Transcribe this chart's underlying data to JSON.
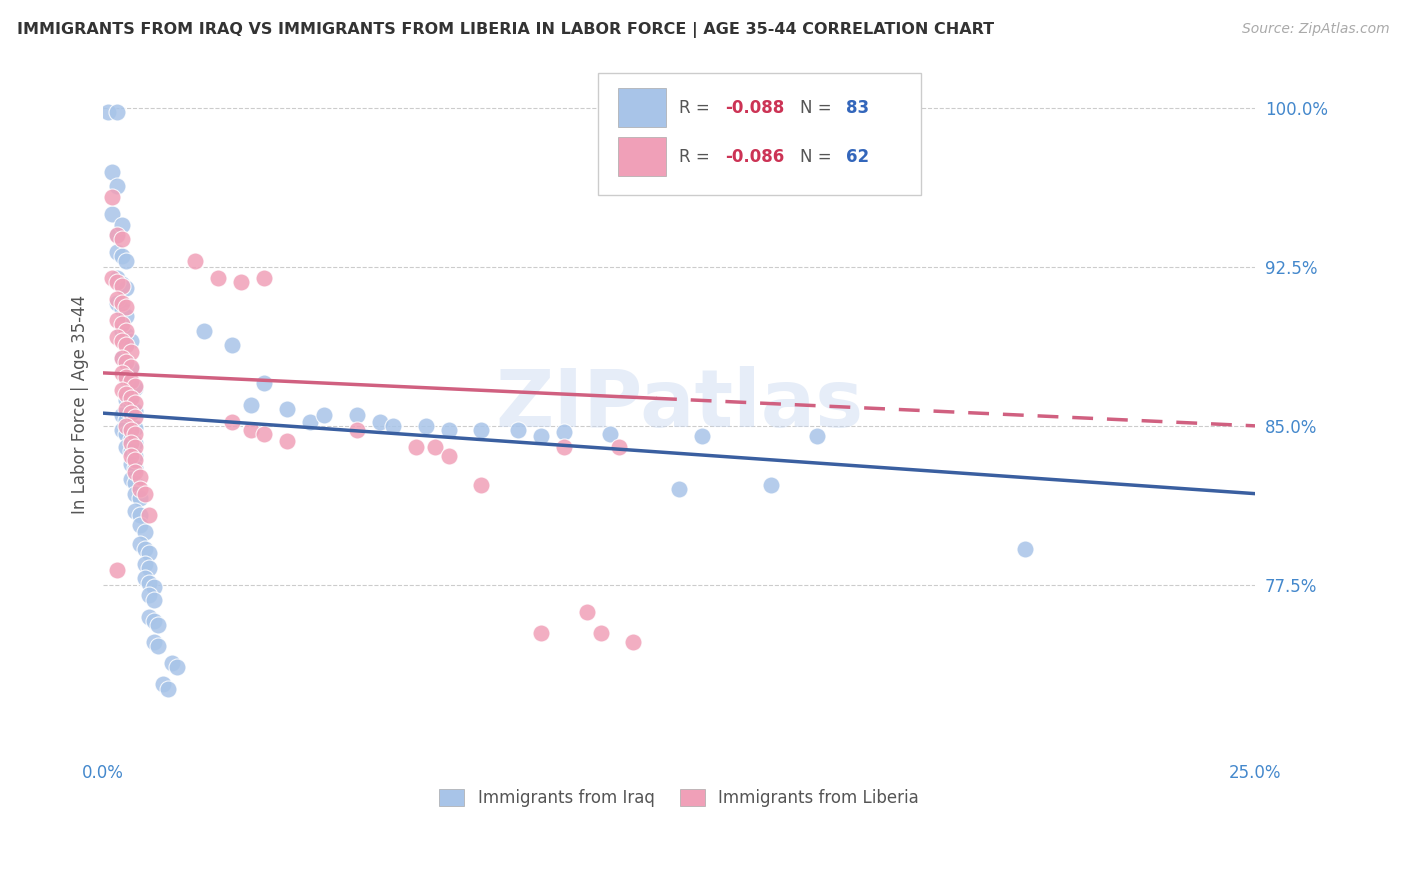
{
  "title": "IMMIGRANTS FROM IRAQ VS IMMIGRANTS FROM LIBERIA IN LABOR FORCE | AGE 35-44 CORRELATION CHART",
  "source": "Source: ZipAtlas.com",
  "ylabel": "In Labor Force | Age 35-44",
  "xlim": [
    0.0,
    0.25
  ],
  "ylim": [
    0.695,
    1.025
  ],
  "yticks": [
    0.775,
    0.85,
    0.925,
    1.0
  ],
  "ytick_labels": [
    "77.5%",
    "85.0%",
    "92.5%",
    "100.0%"
  ],
  "xticks": [
    0.0,
    0.05,
    0.1,
    0.15,
    0.2,
    0.25
  ],
  "xtick_labels": [
    "0.0%",
    "",
    "",
    "",
    "",
    "25.0%"
  ],
  "iraq_color": "#a8c4e8",
  "liberia_color": "#f0a0b8",
  "iraq_line_color": "#3a5fa0",
  "liberia_line_color": "#d06080",
  "iraq_line_x0": 0.0,
  "iraq_line_y0": 0.856,
  "iraq_line_x1": 0.25,
  "iraq_line_y1": 0.818,
  "liberia_line_x0": 0.0,
  "liberia_line_y0": 0.875,
  "liberia_line_x1": 0.25,
  "liberia_line_y1": 0.85,
  "liberia_line_solid_end": 0.12,
  "iraq_scatter": [
    [
      0.001,
      0.998
    ],
    [
      0.003,
      0.998
    ],
    [
      0.002,
      0.97
    ],
    [
      0.003,
      0.963
    ],
    [
      0.002,
      0.95
    ],
    [
      0.003,
      0.94
    ],
    [
      0.004,
      0.945
    ],
    [
      0.003,
      0.932
    ],
    [
      0.004,
      0.93
    ],
    [
      0.005,
      0.928
    ],
    [
      0.003,
      0.92
    ],
    [
      0.004,
      0.917
    ],
    [
      0.005,
      0.915
    ],
    [
      0.003,
      0.908
    ],
    [
      0.004,
      0.905
    ],
    [
      0.005,
      0.902
    ],
    [
      0.004,
      0.895
    ],
    [
      0.005,
      0.893
    ],
    [
      0.006,
      0.89
    ],
    [
      0.004,
      0.882
    ],
    [
      0.005,
      0.88
    ],
    [
      0.006,
      0.877
    ],
    [
      0.005,
      0.872
    ],
    [
      0.006,
      0.87
    ],
    [
      0.007,
      0.868
    ],
    [
      0.005,
      0.862
    ],
    [
      0.006,
      0.86
    ],
    [
      0.007,
      0.857
    ],
    [
      0.004,
      0.855
    ],
    [
      0.005,
      0.853
    ],
    [
      0.006,
      0.851
    ],
    [
      0.007,
      0.849
    ],
    [
      0.004,
      0.848
    ],
    [
      0.005,
      0.846
    ],
    [
      0.006,
      0.844
    ],
    [
      0.007,
      0.842
    ],
    [
      0.005,
      0.84
    ],
    [
      0.006,
      0.838
    ],
    [
      0.007,
      0.836
    ],
    [
      0.006,
      0.832
    ],
    [
      0.007,
      0.83
    ],
    [
      0.006,
      0.825
    ],
    [
      0.007,
      0.823
    ],
    [
      0.007,
      0.818
    ],
    [
      0.008,
      0.816
    ],
    [
      0.007,
      0.81
    ],
    [
      0.008,
      0.808
    ],
    [
      0.008,
      0.803
    ],
    [
      0.009,
      0.8
    ],
    [
      0.008,
      0.794
    ],
    [
      0.009,
      0.792
    ],
    [
      0.01,
      0.79
    ],
    [
      0.009,
      0.785
    ],
    [
      0.01,
      0.783
    ],
    [
      0.009,
      0.778
    ],
    [
      0.01,
      0.776
    ],
    [
      0.011,
      0.774
    ],
    [
      0.01,
      0.77
    ],
    [
      0.011,
      0.768
    ],
    [
      0.01,
      0.76
    ],
    [
      0.011,
      0.758
    ],
    [
      0.012,
      0.756
    ],
    [
      0.011,
      0.748
    ],
    [
      0.012,
      0.746
    ],
    [
      0.015,
      0.738
    ],
    [
      0.016,
      0.736
    ],
    [
      0.013,
      0.728
    ],
    [
      0.014,
      0.726
    ],
    [
      0.022,
      0.895
    ],
    [
      0.028,
      0.888
    ],
    [
      0.032,
      0.86
    ],
    [
      0.035,
      0.87
    ],
    [
      0.04,
      0.858
    ],
    [
      0.045,
      0.852
    ],
    [
      0.048,
      0.855
    ],
    [
      0.055,
      0.855
    ],
    [
      0.06,
      0.852
    ],
    [
      0.063,
      0.85
    ],
    [
      0.07,
      0.85
    ],
    [
      0.075,
      0.848
    ],
    [
      0.082,
      0.848
    ],
    [
      0.09,
      0.848
    ],
    [
      0.095,
      0.845
    ],
    [
      0.1,
      0.847
    ],
    [
      0.11,
      0.846
    ],
    [
      0.13,
      0.845
    ],
    [
      0.155,
      0.845
    ],
    [
      0.2,
      0.792
    ],
    [
      0.125,
      0.82
    ],
    [
      0.145,
      0.822
    ]
  ],
  "liberia_scatter": [
    [
      0.002,
      0.958
    ],
    [
      0.003,
      0.94
    ],
    [
      0.004,
      0.938
    ],
    [
      0.002,
      0.92
    ],
    [
      0.003,
      0.918
    ],
    [
      0.004,
      0.916
    ],
    [
      0.003,
      0.91
    ],
    [
      0.004,
      0.908
    ],
    [
      0.005,
      0.906
    ],
    [
      0.003,
      0.9
    ],
    [
      0.004,
      0.898
    ],
    [
      0.005,
      0.895
    ],
    [
      0.003,
      0.892
    ],
    [
      0.004,
      0.89
    ],
    [
      0.005,
      0.888
    ],
    [
      0.006,
      0.885
    ],
    [
      0.004,
      0.882
    ],
    [
      0.005,
      0.88
    ],
    [
      0.006,
      0.878
    ],
    [
      0.004,
      0.875
    ],
    [
      0.005,
      0.873
    ],
    [
      0.006,
      0.871
    ],
    [
      0.007,
      0.869
    ],
    [
      0.004,
      0.867
    ],
    [
      0.005,
      0.865
    ],
    [
      0.006,
      0.863
    ],
    [
      0.007,
      0.861
    ],
    [
      0.005,
      0.858
    ],
    [
      0.006,
      0.856
    ],
    [
      0.007,
      0.854
    ],
    [
      0.005,
      0.85
    ],
    [
      0.006,
      0.848
    ],
    [
      0.007,
      0.846
    ],
    [
      0.006,
      0.842
    ],
    [
      0.007,
      0.84
    ],
    [
      0.006,
      0.836
    ],
    [
      0.007,
      0.834
    ],
    [
      0.007,
      0.828
    ],
    [
      0.008,
      0.826
    ],
    [
      0.008,
      0.82
    ],
    [
      0.009,
      0.818
    ],
    [
      0.01,
      0.808
    ],
    [
      0.003,
      0.782
    ],
    [
      0.02,
      0.928
    ],
    [
      0.025,
      0.92
    ],
    [
      0.03,
      0.918
    ],
    [
      0.035,
      0.92
    ],
    [
      0.028,
      0.852
    ],
    [
      0.032,
      0.848
    ],
    [
      0.035,
      0.846
    ],
    [
      0.04,
      0.843
    ],
    [
      0.055,
      0.848
    ],
    [
      0.068,
      0.84
    ],
    [
      0.072,
      0.84
    ],
    [
      0.075,
      0.836
    ],
    [
      0.082,
      0.822
    ],
    [
      0.1,
      0.84
    ],
    [
      0.112,
      0.84
    ],
    [
      0.105,
      0.762
    ],
    [
      0.095,
      0.752
    ],
    [
      0.108,
      0.752
    ],
    [
      0.115,
      0.748
    ]
  ]
}
